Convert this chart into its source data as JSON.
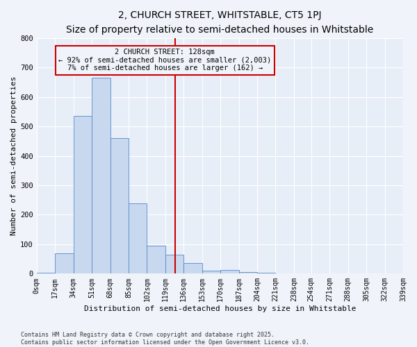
{
  "title": "2, CHURCH STREET, WHITSTABLE, CT5 1PJ",
  "subtitle": "Size of property relative to semi-detached houses in Whitstable",
  "xlabel": "Distribution of semi-detached houses by size in Whitstable",
  "ylabel": "Number of semi-detached properties",
  "bin_edges": [
    0,
    17,
    34,
    51,
    68,
    85,
    102,
    119,
    136,
    153,
    170,
    187,
    204,
    221,
    238,
    254,
    271,
    288,
    305,
    322,
    339
  ],
  "bar_heights": [
    3,
    70,
    535,
    665,
    460,
    240,
    95,
    65,
    35,
    10,
    12,
    5,
    3,
    0,
    0,
    0,
    0,
    0,
    0,
    0
  ],
  "bar_color": "#c8d8ee",
  "bar_edge_color": "#5588cc",
  "vline_x": 128,
  "vline_color": "#cc0000",
  "annotation_title": "2 CHURCH STREET: 128sqm",
  "annotation_line1": "← 92% of semi-detached houses are smaller (2,003)",
  "annotation_line2": "7% of semi-detached houses are larger (162) →",
  "annotation_box_color": "#cc0000",
  "ylim": [
    0,
    800
  ],
  "yticks": [
    0,
    100,
    200,
    300,
    400,
    500,
    600,
    700,
    800
  ],
  "tick_labels": [
    "0sqm",
    "17sqm",
    "34sqm",
    "51sqm",
    "68sqm",
    "85sqm",
    "102sqm",
    "119sqm",
    "136sqm",
    "153sqm",
    "170sqm",
    "187sqm",
    "204sqm",
    "221sqm",
    "238sqm",
    "254sqm",
    "271sqm",
    "288sqm",
    "305sqm",
    "322sqm",
    "339sqm"
  ],
  "footnote1": "Contains HM Land Registry data © Crown copyright and database right 2025.",
  "footnote2": "Contains public sector information licensed under the Open Government Licence v3.0.",
  "background_color": "#f0f4fa",
  "plot_bg_color": "#e8eef8",
  "grid_color": "#ffffff",
  "title_fontsize": 10,
  "subtitle_fontsize": 9,
  "axis_label_fontsize": 8,
  "tick_fontsize": 7,
  "annotation_fontsize": 7.5,
  "footnote_fontsize": 6
}
